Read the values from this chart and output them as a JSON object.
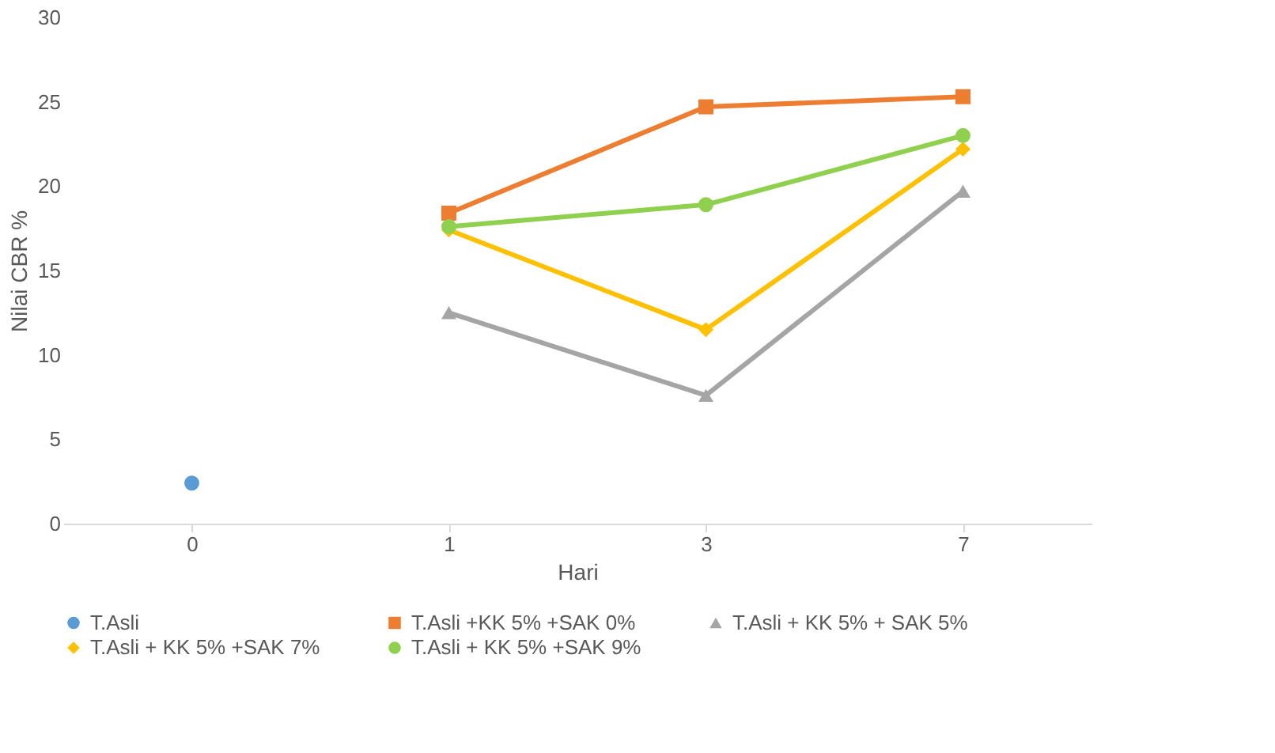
{
  "chart_data": {
    "type": "line",
    "xlabel": "Hari",
    "ylabel": "Nilai CBR %",
    "categories": [
      "0",
      "1",
      "3",
      "7"
    ],
    "ylim": [
      0,
      30
    ],
    "yticks": [
      0,
      5,
      10,
      15,
      20,
      25,
      30
    ],
    "grid": false,
    "legend": "bottom",
    "series": [
      {
        "name": "T.Asli",
        "color": "#5b9bd5",
        "marker": "circle",
        "values": [
          2.4,
          null,
          null,
          null
        ]
      },
      {
        "name": "T.Asli +KK 5% +SAK 0%",
        "color": "#ed7d31",
        "marker": "square",
        "values": [
          null,
          18.4,
          24.7,
          25.3
        ]
      },
      {
        "name": "T.Asli + KK 5% + SAK 5%",
        "color": "#a5a5a5",
        "marker": "triangle",
        "values": [
          null,
          12.5,
          7.6,
          19.7
        ]
      },
      {
        "name": "T.Asli + KK 5% +SAK 7%",
        "color": "#ffc000",
        "marker": "diamond",
        "values": [
          null,
          17.4,
          11.5,
          22.2
        ]
      },
      {
        "name": "T.Asli + KK 5% +SAK 9%",
        "color": "#8fd14f",
        "marker": "circle",
        "values": [
          null,
          17.6,
          18.9,
          23.0
        ]
      }
    ]
  }
}
